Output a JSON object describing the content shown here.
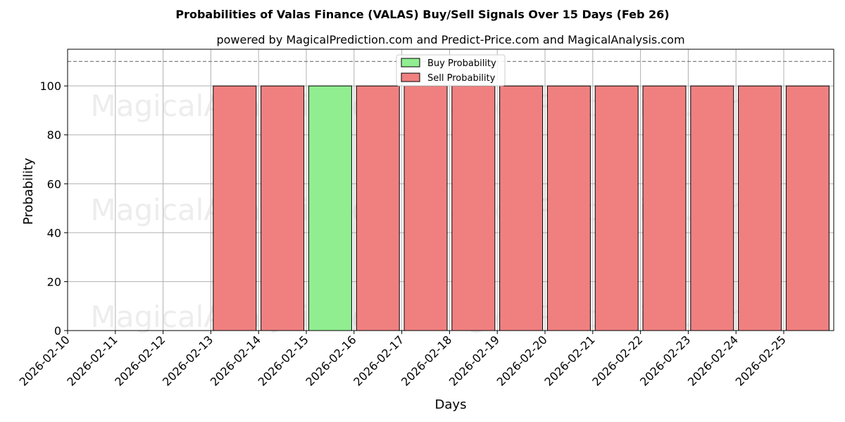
{
  "chart_data": {
    "type": "bar",
    "title": "Probabilities of Valas Finance (VALAS) Buy/Sell Signals Over 15 Days (Feb 26)",
    "subtitle": "powered by MagicalPrediction.com and Predict-Price.com and MagicalAnalysis.com",
    "xlabel": "Days",
    "ylabel": "Probability",
    "ylim": [
      0,
      115
    ],
    "yticks": [
      0,
      20,
      40,
      60,
      80,
      100
    ],
    "threshold_line": 110,
    "grid": true,
    "legend_position": "top-center",
    "xticks": [
      "2026-02-10",
      "2026-02-11",
      "2026-02-12",
      "2026-02-13",
      "2026-02-14",
      "2026-02-15",
      "2026-02-16",
      "2026-02-17",
      "2026-02-18",
      "2026-02-19",
      "2026-02-20",
      "2026-02-21",
      "2026-02-22",
      "2026-02-23",
      "2026-02-24",
      "2026-02-25"
    ],
    "categories": [
      "2026-02-13",
      "2026-02-14",
      "2026-02-15",
      "2026-02-16",
      "2026-02-17",
      "2026-02-18",
      "2026-02-19",
      "2026-02-20",
      "2026-02-21",
      "2026-02-22",
      "2026-02-23",
      "2026-02-24",
      "2026-02-25"
    ],
    "series": [
      {
        "name": "Buy Probability",
        "color": "#90ee90",
        "values": [
          0,
          0,
          100,
          0,
          0,
          0,
          0,
          0,
          0,
          0,
          0,
          0,
          0
        ]
      },
      {
        "name": "Sell Probability",
        "color": "#f08080",
        "values": [
          100,
          100,
          0,
          100,
          100,
          100,
          100,
          100,
          100,
          100,
          100,
          100,
          100
        ]
      }
    ],
    "watermarks": [
      "MagicalAnalysis.com",
      "MagicalPrediction.com"
    ]
  }
}
